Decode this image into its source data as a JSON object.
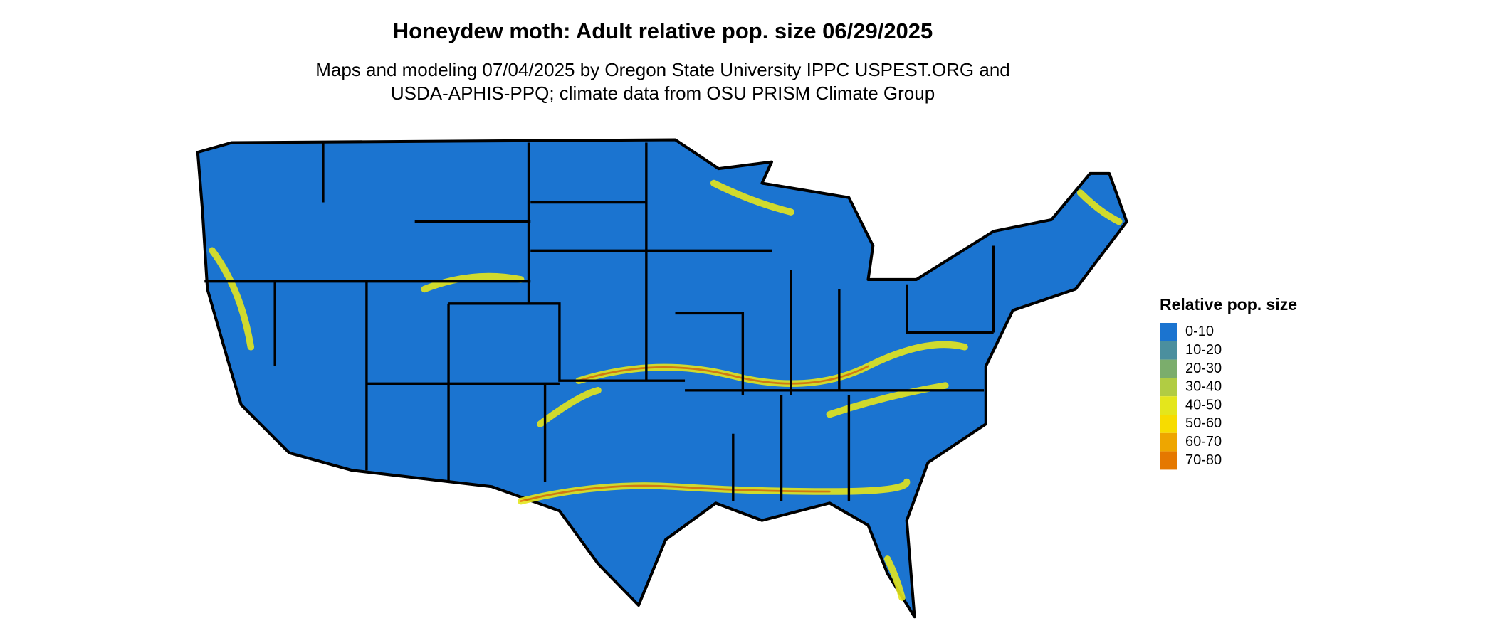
{
  "header": {
    "title": "Honeydew moth: Adult relative pop. size 06/29/2025",
    "subtitle": [
      "Maps and modeling 07/04/2025 by Oregon State University IPPC USPEST.ORG and",
      "USDA-APHIS-PPQ; climate data from OSU PRISM Climate Group"
    ]
  },
  "legend": {
    "title": "Relative pop. size",
    "items": [
      {
        "label": "0-10",
        "color": "#1b74d0"
      },
      {
        "label": "10-20",
        "color": "#4b8f9e"
      },
      {
        "label": "20-30",
        "color": "#7bad6c"
      },
      {
        "label": "30-40",
        "color": "#b1cc43"
      },
      {
        "label": "40-50",
        "color": "#e4e61c"
      },
      {
        "label": "50-60",
        "color": "#f7dc00"
      },
      {
        "label": "60-70",
        "color": "#eea600"
      },
      {
        "label": "70-80",
        "color": "#e57800"
      }
    ]
  }
}
